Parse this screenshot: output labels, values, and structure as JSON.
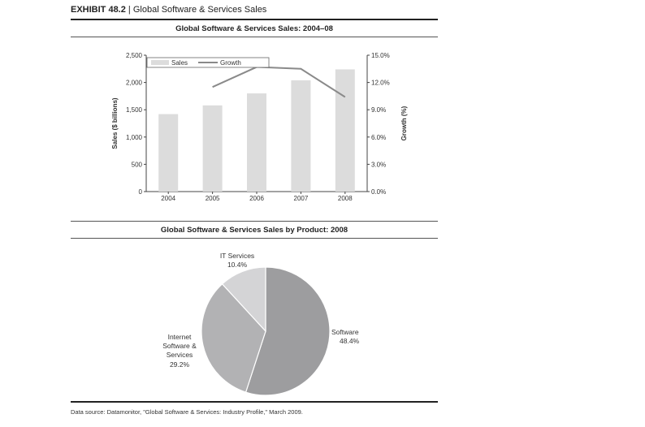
{
  "exhibit": {
    "label": "EXHIBIT 48.2",
    "separator": "|",
    "title": "Global Software & Services Sales"
  },
  "source": "Data source: Datamonitor, \"Global Software & Services: Industry Profile,\" March 2009.",
  "colors": {
    "bar": "#dcdcdc",
    "line": "#8a8a8a",
    "software": "#9d9d9f",
    "internet": "#b2b2b4",
    "it_services": "#d4d4d6",
    "axis": "#444444"
  },
  "chart_data": [
    {
      "type": "bar",
      "title": "Global Software & Services Sales: 2004–08",
      "categories": [
        "2004",
        "2005",
        "2006",
        "2007",
        "2008"
      ],
      "series": [
        {
          "name": "Sales",
          "kind": "bar",
          "axis": "left",
          "values": [
            1420,
            1580,
            1800,
            2040,
            2240
          ]
        },
        {
          "name": "Growth",
          "kind": "line",
          "axis": "right",
          "values": [
            null,
            11.5,
            13.7,
            13.5,
            10.4
          ]
        }
      ],
      "ylabel": "Sales ($ billions)",
      "ylim": [
        0,
        2500
      ],
      "yticks": [
        "0",
        "500",
        "1,000",
        "1,500",
        "2,000",
        "2,500"
      ],
      "y2label": "Growth (%)",
      "y2lim": [
        0,
        15
      ],
      "y2ticks": [
        "0.0%",
        "3.0%",
        "6.0%",
        "9.0%",
        "12.0%",
        "15.0%"
      ],
      "legend": "top-left"
    },
    {
      "type": "pie",
      "title": "Global Software & Services Sales by Product: 2008",
      "slices": [
        {
          "name": "Software",
          "value": 48.4,
          "label": "48.4%"
        },
        {
          "name": "Internet Software & Services",
          "lines": [
            "Internet",
            "Software &",
            "Services"
          ],
          "value": 29.2,
          "label": "29.2%"
        },
        {
          "name": "IT Services",
          "value": 10.4,
          "label": "10.4%"
        }
      ]
    }
  ]
}
